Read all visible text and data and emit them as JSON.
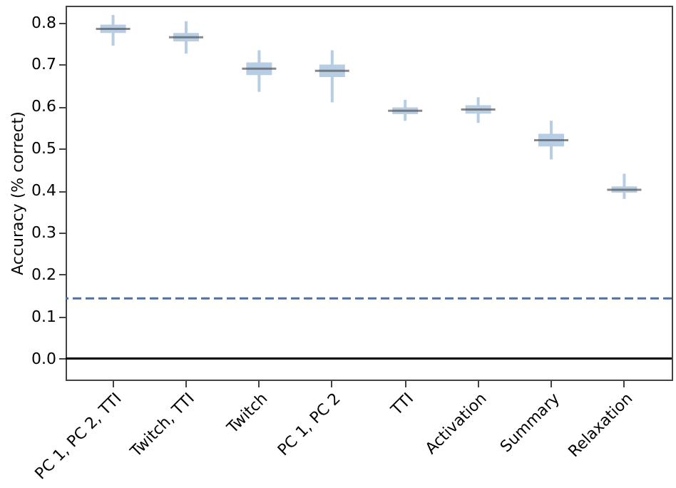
{
  "chart_data": {
    "type": "box",
    "ylabel": "Accuracy (% correct)",
    "categories": [
      "PC 1, PC 2, TTI",
      "Twitch, TTI",
      "Twitch",
      "PC 1, PC 2",
      "TTI",
      "Activation",
      "Summary",
      "Relaxation"
    ],
    "boxes": [
      {
        "low": 0.745,
        "q1": 0.775,
        "median": 0.785,
        "q3": 0.795,
        "high": 0.818
      },
      {
        "low": 0.726,
        "q1": 0.755,
        "median": 0.765,
        "q3": 0.775,
        "high": 0.803
      },
      {
        "low": 0.635,
        "q1": 0.675,
        "median": 0.69,
        "q3": 0.705,
        "high": 0.734
      },
      {
        "low": 0.61,
        "q1": 0.67,
        "median": 0.685,
        "q3": 0.7,
        "high": 0.734
      },
      {
        "low": 0.566,
        "q1": 0.582,
        "median": 0.59,
        "q3": 0.598,
        "high": 0.616
      },
      {
        "low": 0.561,
        "q1": 0.583,
        "median": 0.593,
        "q3": 0.603,
        "high": 0.622
      },
      {
        "low": 0.474,
        "q1": 0.505,
        "median": 0.52,
        "q3": 0.535,
        "high": 0.566
      },
      {
        "low": 0.38,
        "q1": 0.395,
        "median": 0.402,
        "q3": 0.41,
        "high": 0.44
      }
    ],
    "color": "#b7cde3",
    "ylim": [
      -0.05,
      0.84
    ],
    "yticks": [
      {
        "value": 0,
        "label": "0.0"
      },
      0.1,
      0.2,
      0.3,
      0.4,
      0.5,
      0.6,
      0.7,
      0.8
    ],
    "ref_lines": [
      {
        "axis": "y",
        "value": 0.143,
        "color": "#4a72a8",
        "line_style": "dashed"
      },
      {
        "axis": "y",
        "value": 0,
        "color": "#000000",
        "line_style": "solid"
      }
    ],
    "grid": false
  }
}
